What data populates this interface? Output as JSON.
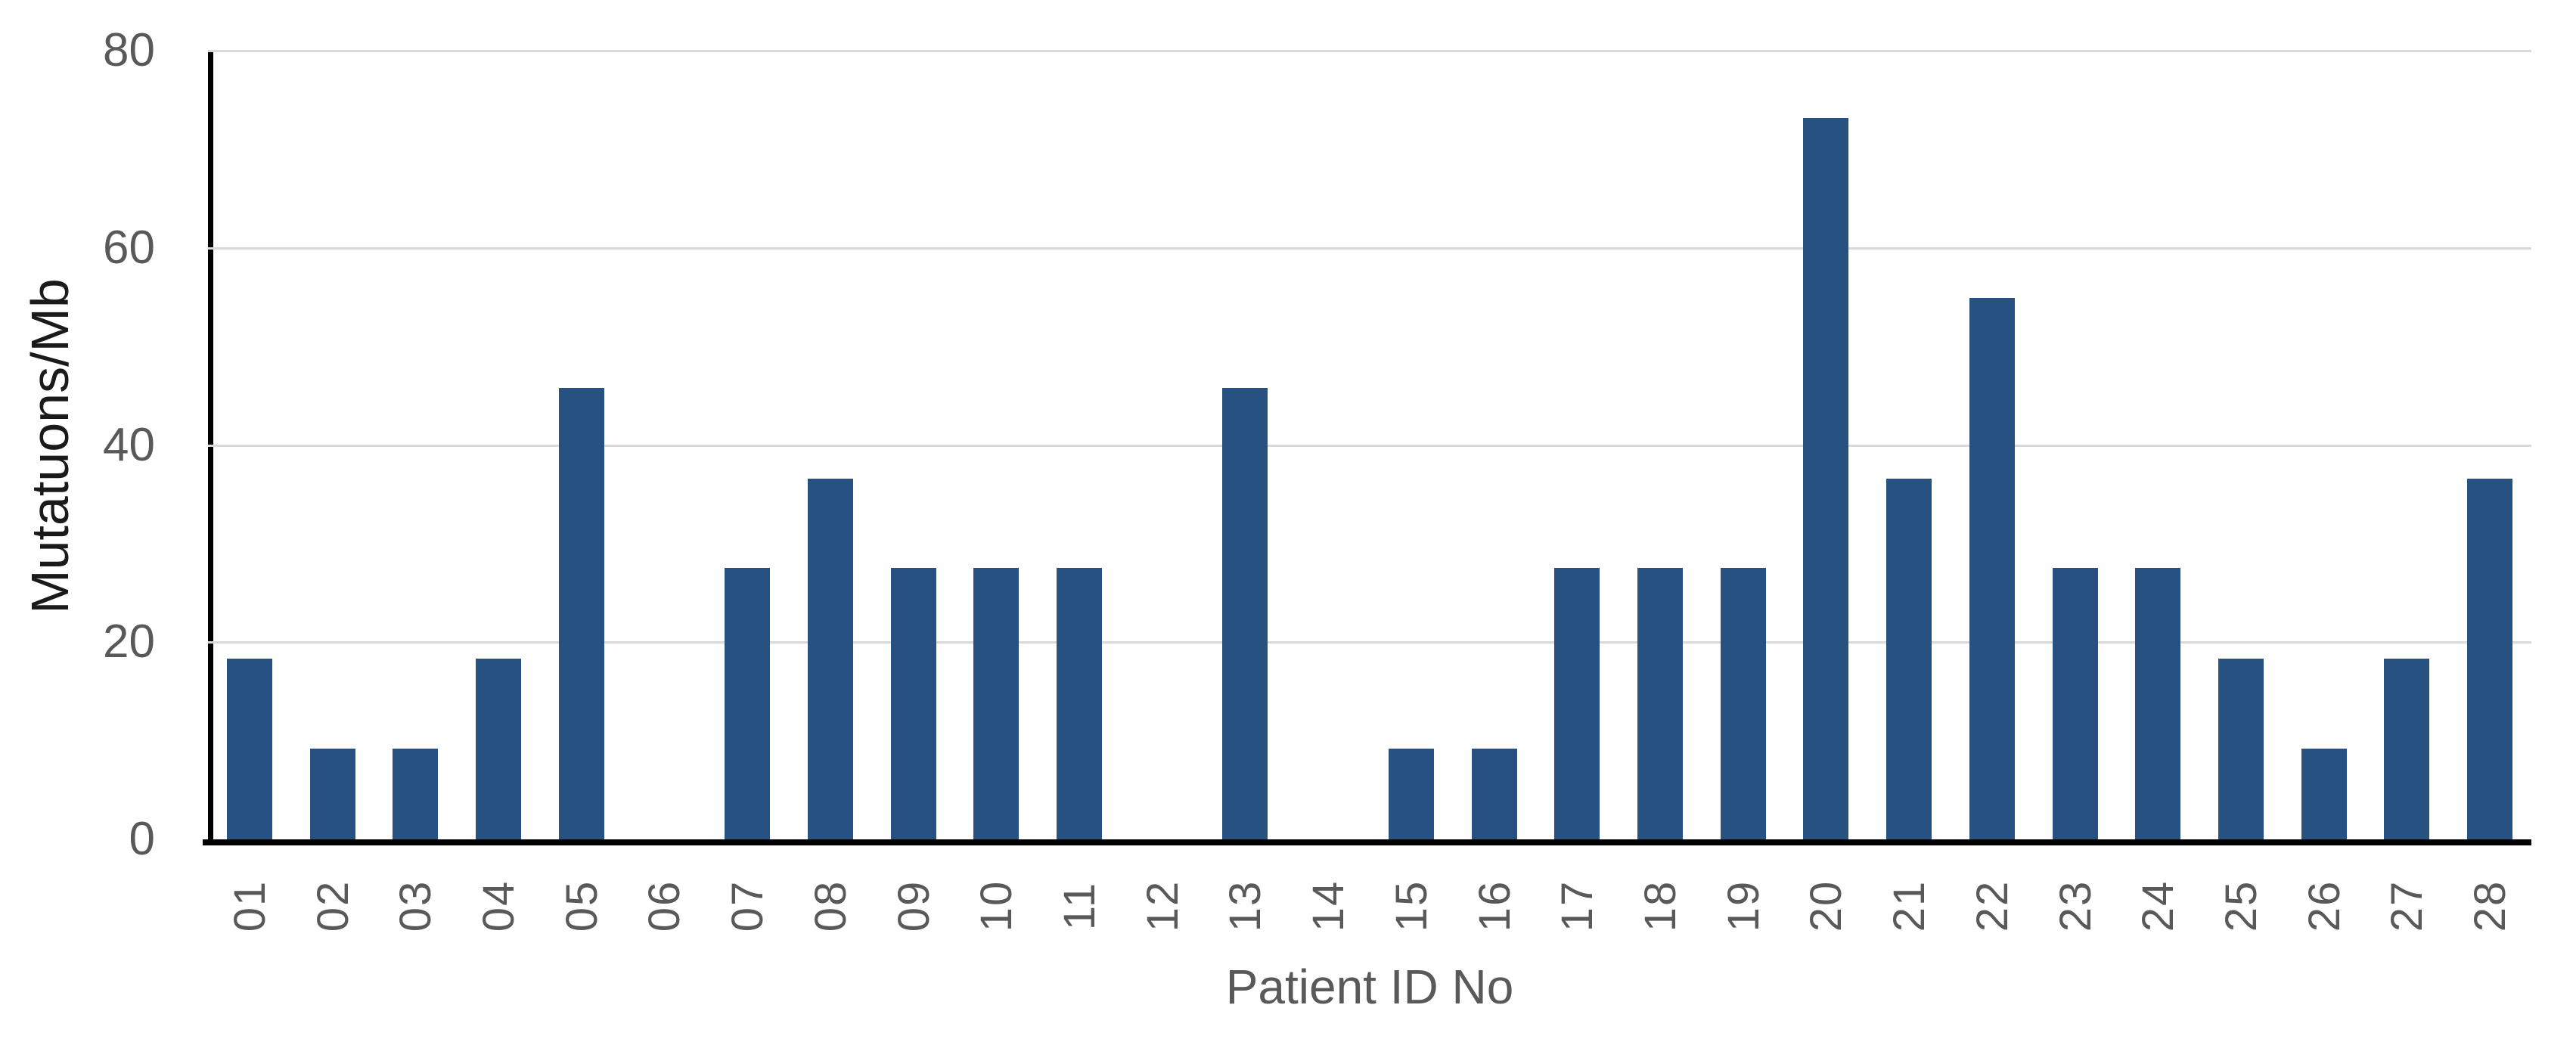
{
  "chart_data": {
    "type": "bar",
    "title": "",
    "xlabel": "Patient ID No",
    "ylabel": "Mutatuons/Mb",
    "categories": [
      "01",
      "02",
      "03",
      "04",
      "05",
      "06",
      "07",
      "08",
      "09",
      "10",
      "11",
      "12",
      "13",
      "14",
      "15",
      "16",
      "17",
      "18",
      "19",
      "20",
      "21",
      "22",
      "23",
      "24",
      "25",
      "26",
      "27",
      "28"
    ],
    "values": [
      18.3,
      9.2,
      9.2,
      18.3,
      45.8,
      0,
      27.5,
      36.6,
      27.5,
      27.5,
      27.5,
      0,
      45.8,
      0,
      9.2,
      9.2,
      27.5,
      27.5,
      27.5,
      73.2,
      36.6,
      54.9,
      27.5,
      27.5,
      18.3,
      9.2,
      18.3,
      36.6
    ],
    "yticks": [
      0,
      20,
      40,
      60,
      80
    ],
    "ylim": [
      0,
      80
    ],
    "grid": "horizontal-gridlines-on",
    "legend": "none",
    "colors": {
      "bar": "#265180",
      "gridline": "#D9D9D9",
      "axis_line": "#000000",
      "tick_label": "#595959",
      "y_axis_title": "#1A1A1A",
      "x_axis_title": "#595959"
    }
  }
}
